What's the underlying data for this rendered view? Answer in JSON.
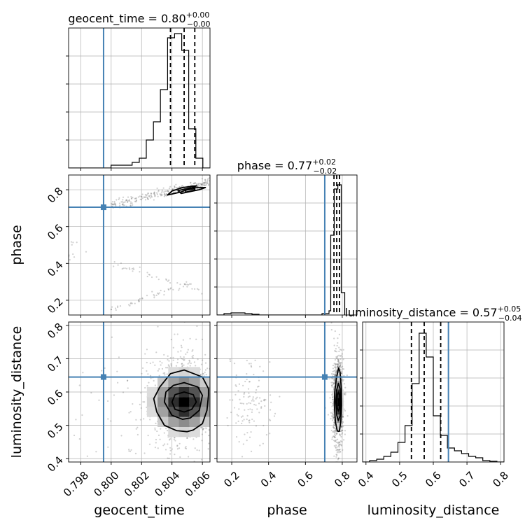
{
  "colors": {
    "truth": "#4682b4",
    "hist": "#000000",
    "grid": "#b0b0b0",
    "scatter": "#555555"
  },
  "chart_data": {
    "type": "corner",
    "grid": true,
    "parameters": [
      {
        "name": "geocent_time",
        "axis_label": "geocent_time",
        "range": [
          0.7972,
          0.8065
        ],
        "ticks": [
          0.798,
          0.8,
          0.802,
          0.804,
          0.806
        ],
        "tick_labels": [
          "0.798",
          "0.800",
          "0.802",
          "0.804",
          "0.806"
        ],
        "truth": 0.7995,
        "title": {
          "main": "geocent_time = 0.80",
          "sup": "+0.00",
          "sub": "−0.00"
        },
        "quantiles": [
          0.8039,
          0.8048,
          0.8055
        ],
        "hist_edges": [
          0.7972,
          0.79766,
          0.79813,
          0.79859,
          0.79906,
          0.79952,
          0.79999,
          0.80045,
          0.80092,
          0.80138,
          0.80185,
          0.80231,
          0.80278,
          0.80324,
          0.80371,
          0.80417,
          0.80464,
          0.8051,
          0.80557,
          0.80603,
          0.8065
        ],
        "hist_counts": [
          0,
          0,
          0,
          0,
          0,
          0,
          0.02,
          0.02,
          0.02,
          0.04,
          0.07,
          0.2,
          0.33,
          0.56,
          0.93,
          0.96,
          0.84,
          0.28,
          0.07,
          0
        ]
      },
      {
        "name": "phase",
        "axis_label": "phase",
        "range": [
          0.12,
          0.88
        ],
        "ticks": [
          0.2,
          0.4,
          0.6,
          0.8
        ],
        "tick_labels": [
          "0.2",
          "0.4",
          "0.6",
          "0.8"
        ],
        "truth": 0.705,
        "title": {
          "main": "phase = 0.77",
          "sup": "+0.02",
          "sub": "−0.02"
        },
        "quantiles": [
          0.755,
          0.77,
          0.785
        ],
        "hist_edges": [
          0.12,
          0.158,
          0.196,
          0.234,
          0.272,
          0.31,
          0.348,
          0.386,
          0.424,
          0.462,
          0.5,
          0.538,
          0.576,
          0.614,
          0.652,
          0.69,
          0.728,
          0.7375,
          0.7565,
          0.776,
          0.7945,
          0.8135
        ],
        "hist_counts": [
          0,
          0.01,
          0.015,
          0.015,
          0.01,
          0.005,
          0,
          0,
          0,
          0,
          0,
          0,
          0,
          0,
          0,
          0.01,
          0.03,
          0.57,
          0.9,
          0.93,
          0.16
        ]
      },
      {
        "name": "luminosity_distance",
        "axis_label": "luminosity_distance",
        "range": [
          0.39,
          0.81
        ],
        "ticks": [
          0.4,
          0.5,
          0.6,
          0.7,
          0.8
        ],
        "tick_labels": [
          "0.4",
          "0.5",
          "0.6",
          "0.7",
          "0.8"
        ],
        "truth": 0.645,
        "title": {
          "main": "luminosity_distance = 0.57",
          "sup": "+0.05",
          "sub": "−0.04"
        },
        "quantiles": [
          0.535,
          0.573,
          0.622
        ],
        "hist_edges": [
          0.39,
          0.411,
          0.432,
          0.453,
          0.474,
          0.495,
          0.516,
          0.537,
          0.558,
          0.579,
          0.6,
          0.621,
          0.642,
          0.663,
          0.684,
          0.705,
          0.726,
          0.747,
          0.768,
          0.789,
          0.81
        ],
        "hist_counts": [
          0,
          0.01,
          0.02,
          0.04,
          0.07,
          0.14,
          0.26,
          0.56,
          0.92,
          0.75,
          0.33,
          0.19,
          0.1,
          0.08,
          0.06,
          0.04,
          0.03,
          0.01,
          0.005,
          0
        ]
      }
    ],
    "scatter_panels": [
      {
        "x_param": 0,
        "y_param": 1,
        "clouds": [
          {
            "type": "band",
            "x0": 0.8,
            "y0": 0.15,
            "x1": 0.8055,
            "y1": 0.3,
            "spread_y": 0.008,
            "count": 50
          },
          {
            "type": "band",
            "x0": 0.8,
            "y0": 0.4,
            "x1": 0.806,
            "y1": 0.25,
            "spread_y": 0.008,
            "count": 35
          },
          {
            "type": "band",
            "x0": 0.8,
            "y0": 0.72,
            "x1": 0.8065,
            "y1": 0.84,
            "spread_y": 0.012,
            "count": 260
          },
          {
            "type": "blob",
            "cx": 0.7975,
            "cy": 0.46,
            "sx": 0.0003,
            "sy": 0.05,
            "count": 10
          }
        ],
        "contours": [
          [
            [
              0.8037,
              0.771
            ],
            [
              0.8046,
              0.788
            ],
            [
              0.8053,
              0.81
            ],
            [
              0.8056,
              0.821
            ],
            [
              0.8047,
              0.812
            ],
            [
              0.804,
              0.793
            ]
          ],
          [
            [
              0.8046,
              0.78
            ],
            [
              0.8058,
              0.8
            ],
            [
              0.8062,
              0.812
            ],
            [
              0.8052,
              0.81
            ],
            [
              0.8044,
              0.795
            ]
          ],
          [
            [
              0.8049,
              0.787
            ],
            [
              0.8055,
              0.798
            ],
            [
              0.8055,
              0.806
            ],
            [
              0.8049,
              0.798
            ]
          ]
        ]
      },
      {
        "x_param": 0,
        "y_param": 2,
        "clouds": [
          {
            "type": "blob",
            "cx": 0.8047,
            "cy": 0.57,
            "sx": 0.0011,
            "sy": 0.07,
            "count": 900
          },
          {
            "type": "blob",
            "cx": 0.8015,
            "cy": 0.58,
            "sx": 0.0025,
            "sy": 0.12,
            "count": 70
          }
        ],
        "density": {
          "cx": 0.8048,
          "cy": 0.57,
          "sx": 0.0007,
          "sy": 0.03
        },
        "contours": [
          [
            [
              0.8048,
              0.666
            ],
            [
              0.806,
              0.645
            ],
            [
              0.8064,
              0.61
            ],
            [
              0.8064,
              0.59
            ],
            [
              0.8063,
              0.545
            ],
            [
              0.806,
              0.505
            ],
            [
              0.8054,
              0.486
            ],
            [
              0.805,
              0.481
            ],
            [
              0.8043,
              0.484
            ],
            [
              0.8035,
              0.5
            ],
            [
              0.803,
              0.54
            ],
            [
              0.8028,
              0.58
            ],
            [
              0.8032,
              0.615
            ],
            [
              0.8039,
              0.655
            ]
          ],
          [
            [
              0.8048,
              0.628
            ],
            [
              0.8057,
              0.615
            ],
            [
              0.806,
              0.59
            ],
            [
              0.8058,
              0.545
            ],
            [
              0.8052,
              0.522
            ],
            [
              0.8047,
              0.518
            ],
            [
              0.804,
              0.53
            ],
            [
              0.8035,
              0.57
            ],
            [
              0.8036,
              0.6
            ],
            [
              0.8041,
              0.62
            ]
          ],
          [
            [
              0.8048,
              0.6
            ],
            [
              0.8054,
              0.592
            ],
            [
              0.8056,
              0.57
            ],
            [
              0.8053,
              0.548
            ],
            [
              0.8048,
              0.54
            ],
            [
              0.8042,
              0.548
            ],
            [
              0.804,
              0.57
            ],
            [
              0.8042,
              0.592
            ]
          ]
        ]
      },
      {
        "x_param": 1,
        "y_param": 2,
        "clouds": [
          {
            "type": "blob",
            "cx": 0.775,
            "cy": 0.575,
            "sx": 0.015,
            "sy": 0.07,
            "count": 900
          },
          {
            "type": "blob",
            "cx": 0.3,
            "cy": 0.56,
            "sx": 0.06,
            "sy": 0.07,
            "count": 120
          }
        ],
        "density": {
          "cx": 0.78,
          "cy": 0.57,
          "sx": 0.008,
          "sy": 0.025
        },
        "contours": [
          [
            [
              0.78,
              0.672
            ],
            [
              0.788,
              0.66
            ],
            [
              0.795,
              0.61
            ],
            [
              0.796,
              0.56
            ],
            [
              0.792,
              0.51
            ],
            [
              0.784,
              0.482
            ],
            [
              0.773,
              0.483
            ],
            [
              0.763,
              0.51
            ],
            [
              0.757,
              0.56
            ],
            [
              0.759,
              0.6
            ],
            [
              0.768,
              0.64
            ]
          ],
          [
            [
              0.779,
              0.626
            ],
            [
              0.788,
              0.61
            ],
            [
              0.791,
              0.57
            ],
            [
              0.788,
              0.528
            ],
            [
              0.779,
              0.514
            ],
            [
              0.77,
              0.53
            ],
            [
              0.765,
              0.57
            ],
            [
              0.769,
              0.605
            ]
          ],
          [
            [
              0.779,
              0.6
            ],
            [
              0.785,
              0.59
            ],
            [
              0.787,
              0.57
            ],
            [
              0.784,
              0.55
            ],
            [
              0.779,
              0.543
            ],
            [
              0.773,
              0.552
            ],
            [
              0.771,
              0.57
            ],
            [
              0.773,
              0.59
            ]
          ]
        ]
      }
    ]
  }
}
